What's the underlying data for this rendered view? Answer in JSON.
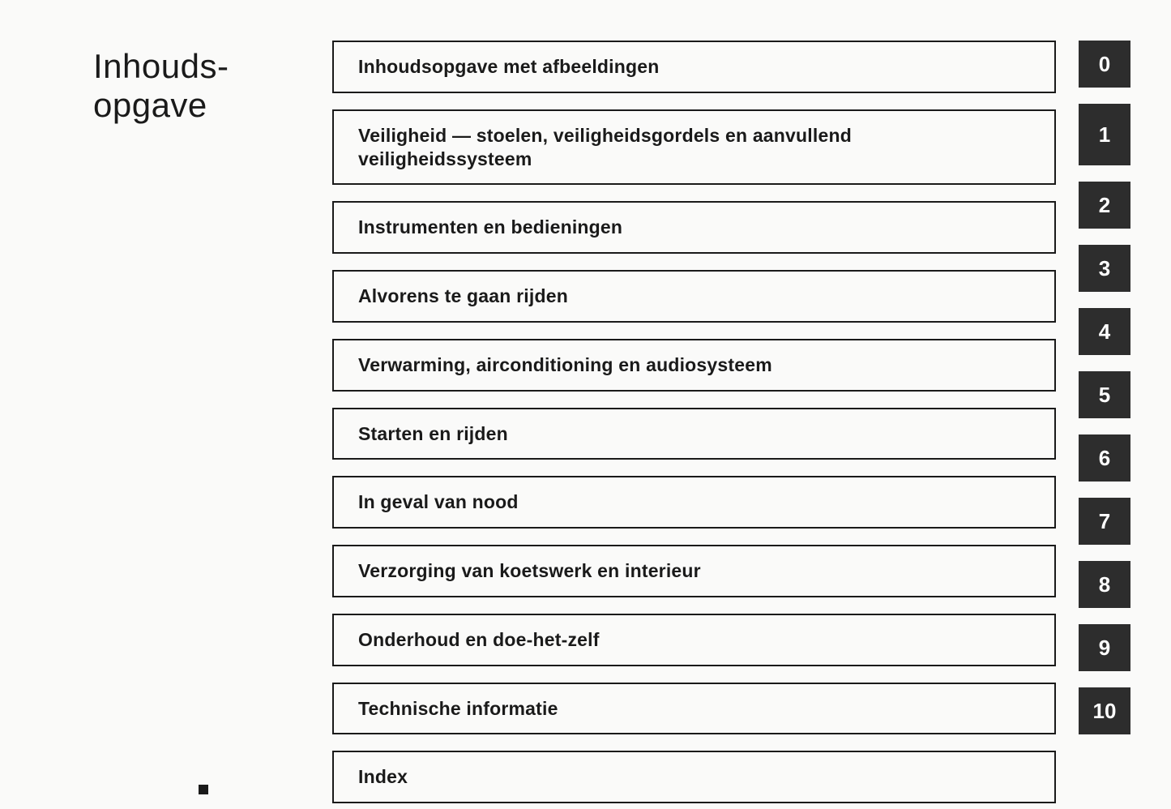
{
  "title_line1": "Inhouds-",
  "title_line2": "opgave",
  "toc": {
    "items": [
      {
        "label": "Inhoudsopgave met afbeeldingen",
        "tab": "0",
        "tall": false
      },
      {
        "label": "Veiligheid — stoelen, veiligheidsgordels en aanvullend veiligheidssysteem",
        "tab": "1",
        "tall": true
      },
      {
        "label": "Instrumenten en bedieningen",
        "tab": "2",
        "tall": false
      },
      {
        "label": "Alvorens te gaan rijden",
        "tab": "3",
        "tall": false
      },
      {
        "label": "Verwarming, airconditioning en audiosysteem",
        "tab": "4",
        "tall": false
      },
      {
        "label": "Starten en rijden",
        "tab": "5",
        "tall": false
      },
      {
        "label": "In geval van nood",
        "tab": "6",
        "tall": false
      },
      {
        "label": "Verzorging van koetswerk en interieur",
        "tab": "7",
        "tall": false
      },
      {
        "label": "Onderhoud en doe-het-zelf",
        "tab": "8",
        "tall": false
      },
      {
        "label": "Technische informatie",
        "tab": "9",
        "tall": false
      },
      {
        "label": "Index",
        "tab": "10",
        "tall": false
      }
    ]
  },
  "colors": {
    "page_bg": "#fafaf9",
    "text": "#1a1a1a",
    "border": "#1a1a1a",
    "tab_bg": "#2d2d2d",
    "tab_text": "#ffffff"
  },
  "typography": {
    "title_fontsize": 42,
    "entry_fontsize": 23,
    "tab_fontsize": 26
  }
}
